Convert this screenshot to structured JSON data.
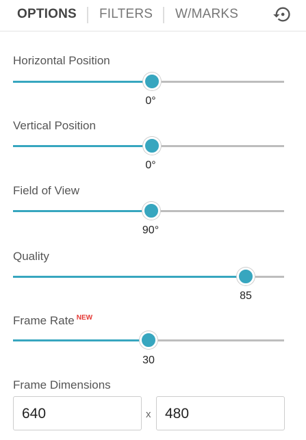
{
  "tabs": [
    "OPTIONS",
    "FILTERS",
    "W/MARKS"
  ],
  "sliders": [
    {
      "label": "Horizontal Position",
      "value": "0°"
    },
    {
      "label": "Vertical Position",
      "value": "0°"
    },
    {
      "label": "Field of View",
      "value": "90°"
    },
    {
      "label": "Quality",
      "value": "85"
    },
    {
      "label": "Frame Rate",
      "badge": "NEW",
      "value": "30"
    }
  ],
  "dimensions": {
    "label": "Frame Dimensions",
    "width": "640",
    "separator": "x",
    "height": "480"
  }
}
